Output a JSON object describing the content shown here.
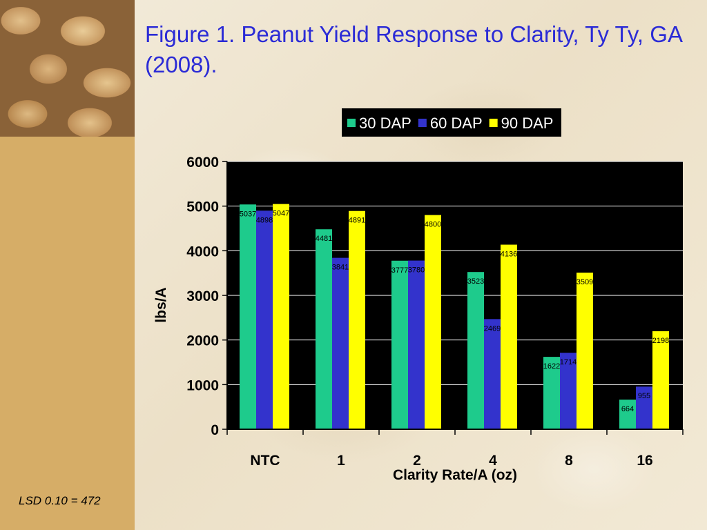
{
  "slide": {
    "title": "Figure 1.  Peanut Yield Response to Clarity, Ty Ty, GA (2008).",
    "footnote": "LSD 0.10 = 472"
  },
  "chart_data": {
    "type": "bar",
    "title": "",
    "xlabel": "Clarity Rate/A (oz)",
    "ylabel": "lbs/A",
    "categories": [
      "NTC",
      "1",
      "2",
      "4",
      "8",
      "16"
    ],
    "ylim": [
      0,
      6000
    ],
    "yticks": [
      0,
      1000,
      2000,
      3000,
      4000,
      5000,
      6000
    ],
    "grid": true,
    "legend_position": "top",
    "series": [
      {
        "name": "30 DAP",
        "color": "#1ecb8c",
        "values": [
          5037,
          4481,
          3777,
          3523,
          1622,
          664
        ]
      },
      {
        "name": "60 DAP",
        "color": "#3333cc",
        "values": [
          4898,
          3841,
          3780,
          2469,
          1714,
          955
        ]
      },
      {
        "name": "90 DAP",
        "color": "#ffff00",
        "values": [
          5047,
          4891,
          4800,
          4136,
          3509,
          2198
        ]
      }
    ],
    "plot_background": "#000000"
  }
}
